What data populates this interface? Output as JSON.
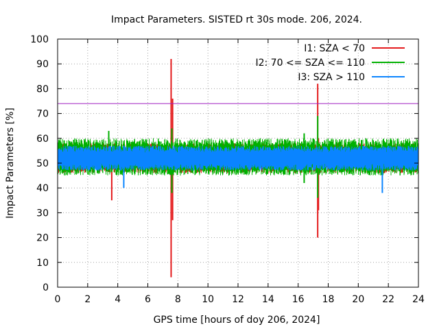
{
  "chart_data": {
    "type": "line",
    "title": "Impact Parameters. SISTED rt 30s mode. 206, 2024.",
    "xlabel": "GPS time [hours of doy 206, 2024]",
    "ylabel": "Impact Parameters [%]",
    "xlim": [
      0,
      24
    ],
    "ylim": [
      0,
      100
    ],
    "xticks": [
      "0",
      "2",
      "4",
      "6",
      "8",
      "10",
      "12",
      "14",
      "16",
      "18",
      "20",
      "22",
      "24"
    ],
    "yticks": [
      "0",
      "10",
      "20",
      "30",
      "40",
      "50",
      "60",
      "70",
      "80",
      "90",
      "100"
    ],
    "grid": true,
    "legend_position": "top-right",
    "threshold": {
      "value": 74,
      "color": "#a020c0"
    },
    "series": [
      {
        "name": "I1: SZA < 70",
        "color": "#e41a1c",
        "baseline": {
          "mean": 52,
          "low": 46,
          "high": 58
        },
        "spikes": [
          {
            "x": 3.6,
            "low": 35,
            "high": 56
          },
          {
            "x": 7.55,
            "low": 4,
            "high": 92
          },
          {
            "x": 7.65,
            "low": 27,
            "high": 76
          },
          {
            "x": 17.3,
            "low": 20,
            "high": 82
          },
          {
            "x": 17.35,
            "low": 31,
            "high": 60
          }
        ]
      },
      {
        "name": "I2: 70 <= SZA <= 110",
        "color": "#00b000",
        "baseline": {
          "mean": 52,
          "low": 45,
          "high": 60
        },
        "spikes": [
          {
            "x": 3.4,
            "low": 48,
            "high": 63
          },
          {
            "x": 7.6,
            "low": 38,
            "high": 64
          },
          {
            "x": 16.4,
            "low": 42,
            "high": 62
          },
          {
            "x": 17.3,
            "low": 36,
            "high": 69
          }
        ]
      },
      {
        "name": "I3: SZA > 110",
        "color": "#0a84ff",
        "baseline": {
          "mean": 52,
          "low": 47,
          "high": 57
        },
        "spikes": [
          {
            "x": 4.4,
            "low": 40,
            "high": 57
          },
          {
            "x": 21.6,
            "low": 38,
            "high": 56
          }
        ]
      }
    ]
  }
}
